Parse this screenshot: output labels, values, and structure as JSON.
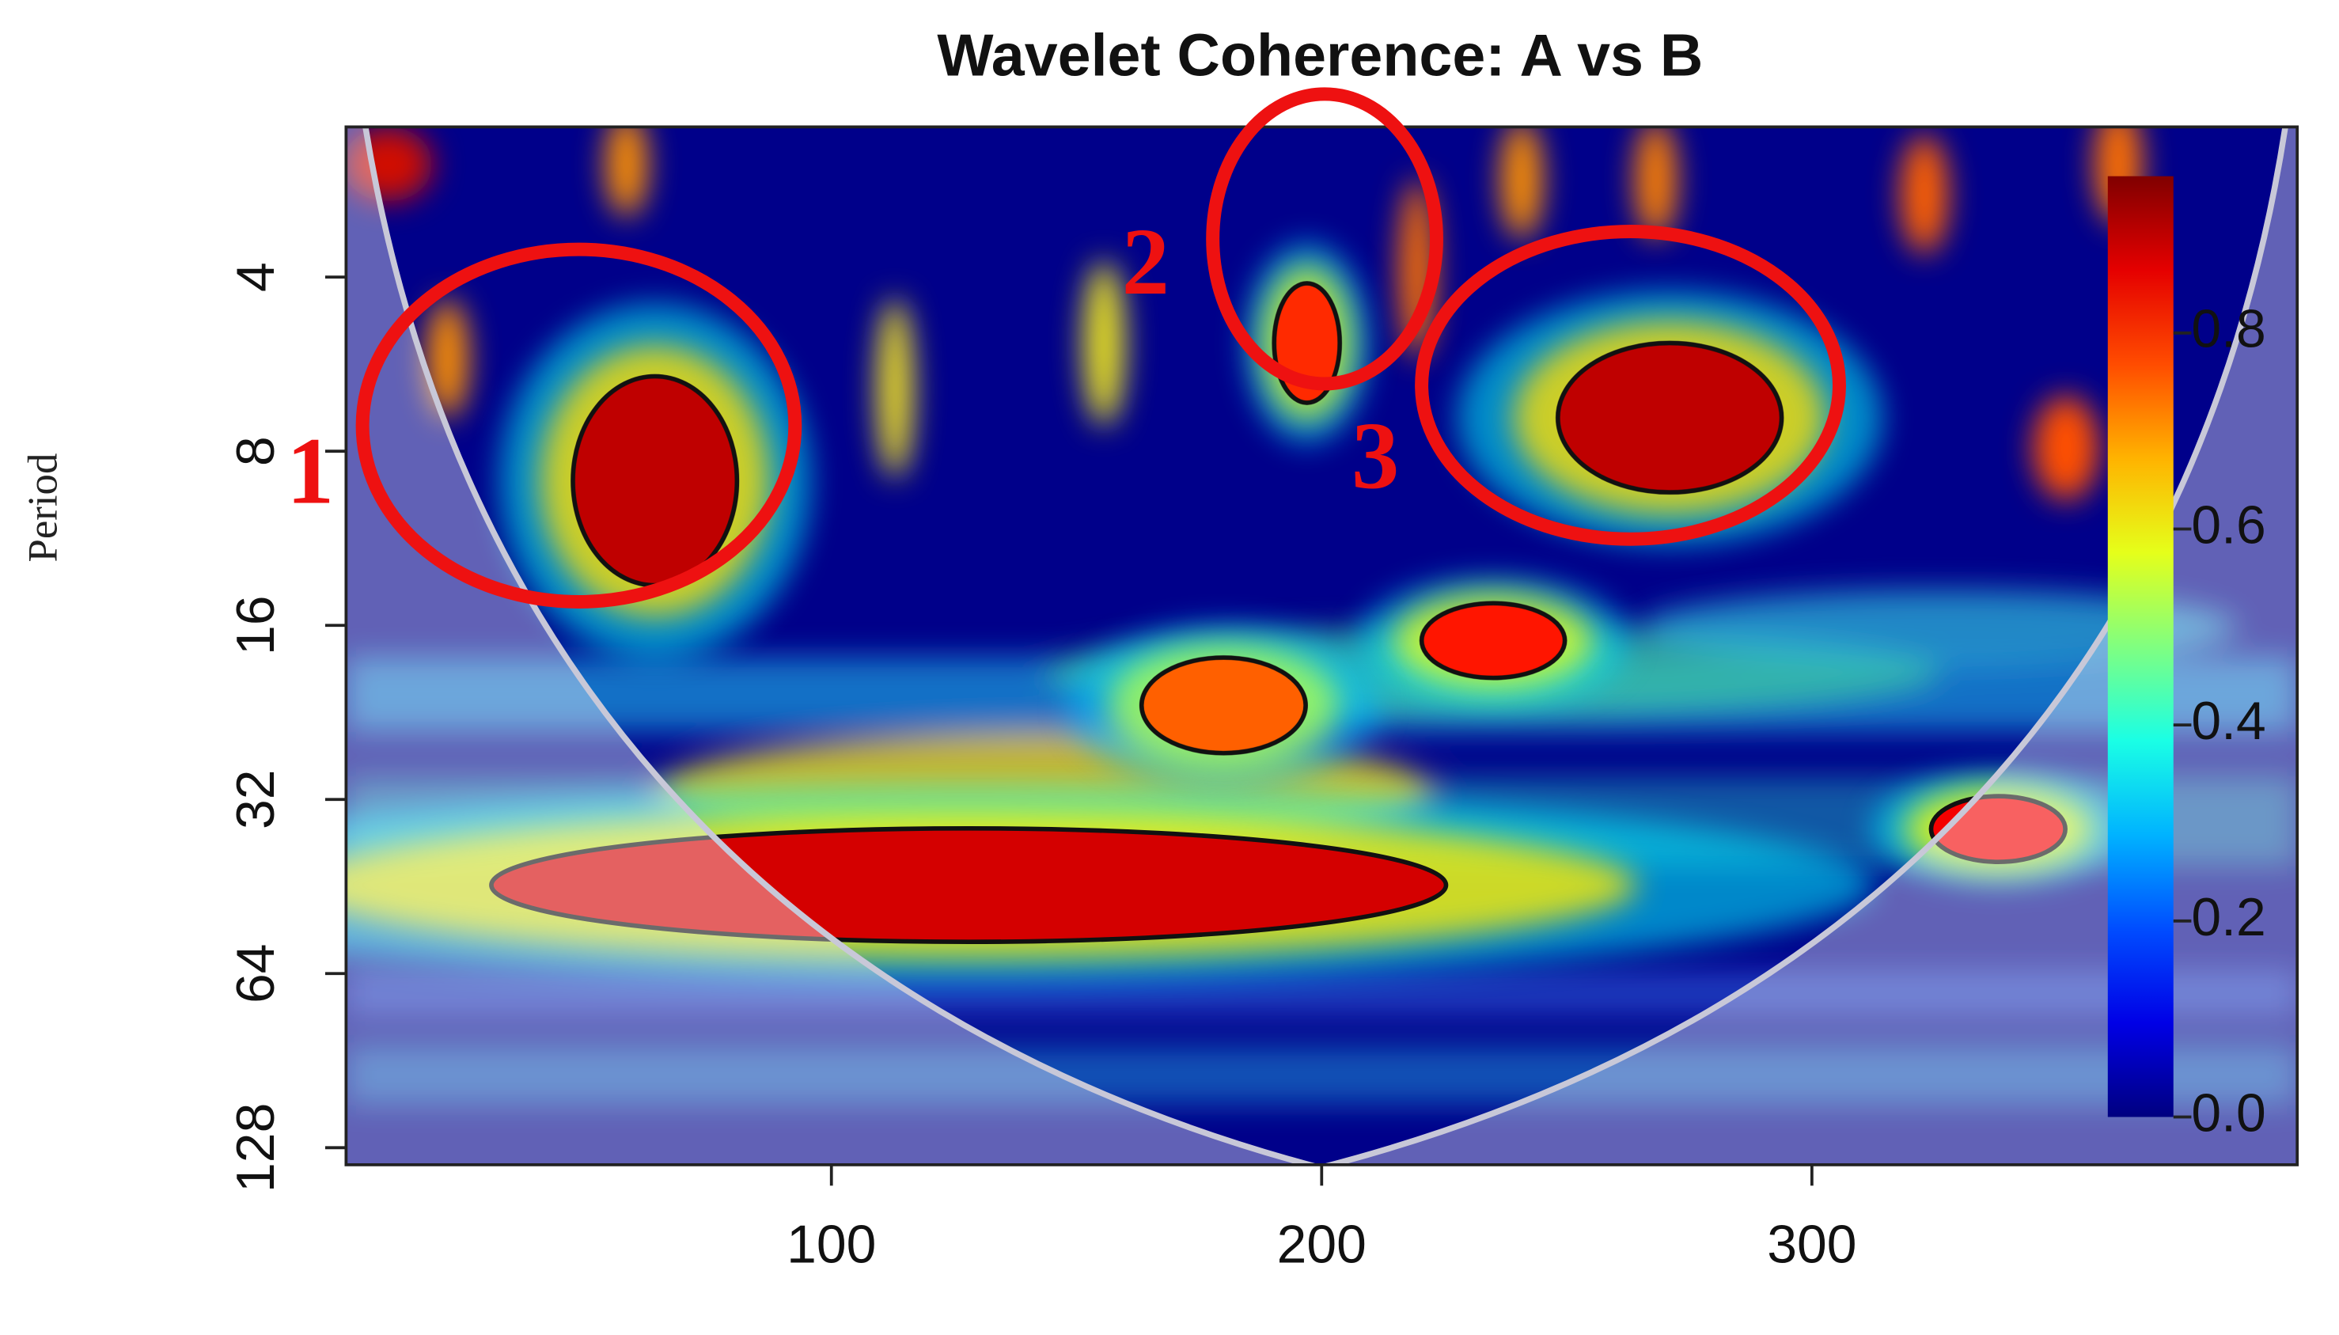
{
  "chart_data": {
    "type": "heatmap",
    "title": "Wavelet Coherence: A vs B",
    "ylabel": "Period",
    "xlim": [
      1,
      399
    ],
    "xticks": [
      100,
      200,
      300
    ],
    "ylim": [
      2.2,
      137
    ],
    "yticks": [
      4,
      8,
      16,
      32,
      64,
      128
    ],
    "yscale": "log2",
    "y_reversed": true,
    "zlim": [
      0,
      0.96
    ],
    "zticks": [
      {
        "value": 0,
        "label": "0.0"
      },
      {
        "value": 0.2,
        "label": "0.2"
      },
      {
        "value": 0.4,
        "label": "0.4"
      },
      {
        "value": 0.6,
        "label": "0.6"
      },
      {
        "value": 0.8,
        "label": "0.8"
      }
    ],
    "colormap": "jet",
    "regions": [
      {
        "x": 64,
        "period": 9,
        "value": 0.9
      },
      {
        "x": 128,
        "period": 45,
        "value": 0.88
      },
      {
        "x": 271,
        "period": 7,
        "value": 0.9
      },
      {
        "x": 235,
        "period": 17,
        "value": 0.82
      },
      {
        "x": 180,
        "period": 22,
        "value": 0.75
      },
      {
        "x": 338,
        "period": 36,
        "value": 0.85
      },
      {
        "x": 197,
        "period": 5.2,
        "value": 0.8
      }
    ],
    "annotations": [
      "1",
      "2",
      "3"
    ]
  }
}
